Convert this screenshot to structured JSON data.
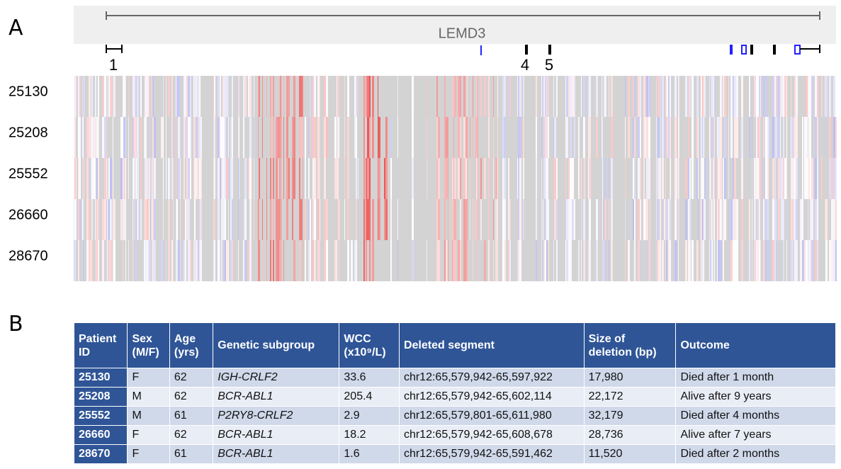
{
  "panel_a": {
    "label": "A",
    "gene": "LEMD3",
    "exon_labels": [
      "1",
      "4",
      "5"
    ],
    "rows": [
      "25130",
      "25208",
      "25552",
      "26660",
      "28670"
    ]
  },
  "panel_b": {
    "label": "B",
    "table": {
      "header": [
        "Patient ID",
        "Sex (M/F)",
        "Age (yrs)",
        "Genetic subgroup",
        "WCC (x10⁹/L)",
        "Deleted segment",
        "Size of deletion (bp)",
        "Outcome"
      ],
      "rows": [
        [
          "25130",
          "F",
          "62",
          "IGH-CRLF2",
          "33.6",
          "chr12:65,579,942-65,597,922",
          "17,980",
          "Died after 1 month"
        ],
        [
          "25208",
          "M",
          "62",
          "BCR-ABL1",
          "205.4",
          "chr12:65,579,942-65,602,114",
          "22,172",
          "Alive after 9 years"
        ],
        [
          "25552",
          "M",
          "61",
          "P2RY8-CRLF2",
          "2.9",
          "chr12:65,579,801-65,611,980",
          "32,179",
          "Died after 4 months"
        ],
        [
          "26660",
          "F",
          "62",
          "BCR-ABL1",
          "18.2",
          "chr12:65,579,942-65,608,678",
          "28,736",
          "Alive after 7 years"
        ],
        [
          "28670",
          "F",
          "61",
          "BCR-ABL1",
          "1.6",
          "chr12:65,579,942-65,591,462",
          "11,520",
          "Died after 2 months"
        ]
      ]
    }
  }
}
